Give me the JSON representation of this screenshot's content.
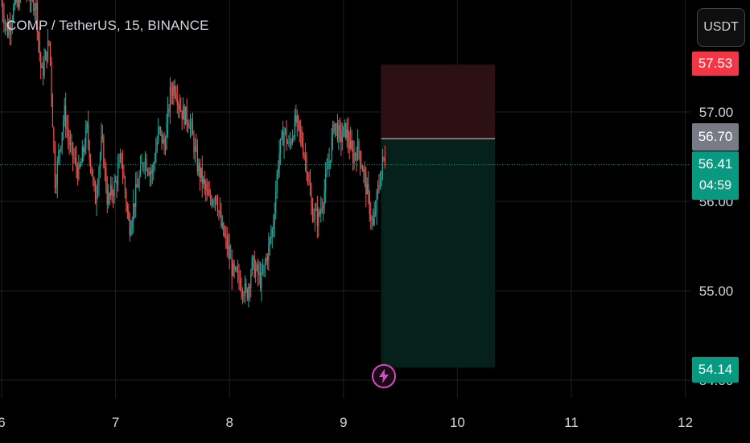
{
  "header": {
    "symbol_title": "COMP / TetherUS, 15, BINANCE",
    "currency_button": "USDT"
  },
  "price_tags": {
    "stop_loss": "57.53",
    "entry": "56.70",
    "last_price": "56.41",
    "countdown": "04:59",
    "take_profit": "54.14"
  },
  "colors": {
    "background": "#000000",
    "up": "#26a69a",
    "down": "#ef5350",
    "grid": "#1f1f1f",
    "stop_zone": "#2c1014",
    "profit_zone": "#06201c",
    "last_price_line": "#089981",
    "alert_icon": "#d64dbd"
  },
  "icons": {
    "alert": "lightning-alert-icon"
  },
  "chart_data": {
    "type": "candlestick",
    "title": "COMP / TetherUS, 15, BINANCE",
    "x_axis": {
      "ticks": [
        "6",
        "7",
        "8",
        "9",
        "10",
        "11",
        "12"
      ],
      "tick_values": [
        6,
        7,
        8,
        9,
        10,
        11,
        12
      ],
      "range": [
        6,
        12.05
      ]
    },
    "y_axis": {
      "ticks": [
        "54.00",
        "55.00",
        "56.00",
        "57.00"
      ],
      "tick_values": [
        54,
        55,
        56,
        57
      ],
      "range": [
        53.85,
        58.4
      ]
    },
    "grid": true,
    "last_price": 56.41,
    "position": {
      "side": "short",
      "entry": 56.7,
      "stop": 57.53,
      "target": 54.14,
      "x_start": 9.33,
      "x_end": 10.33
    },
    "price_path": [
      [
        6.0,
        58.2
      ],
      [
        6.05,
        57.9
      ],
      [
        6.12,
        58.2
      ],
      [
        6.2,
        58.4
      ],
      [
        6.3,
        58.2
      ],
      [
        6.35,
        57.4
      ],
      [
        6.42,
        57.8
      ],
      [
        6.47,
        56.2
      ],
      [
        6.55,
        57.0
      ],
      [
        6.6,
        56.6
      ],
      [
        6.68,
        56.3
      ],
      [
        6.75,
        56.8
      ],
      [
        6.82,
        56.0
      ],
      [
        6.88,
        56.7
      ],
      [
        6.93,
        56.0
      ],
      [
        7.0,
        56.2
      ],
      [
        7.05,
        56.5
      ],
      [
        7.12,
        55.7
      ],
      [
        7.18,
        56.1
      ],
      [
        7.25,
        56.5
      ],
      [
        7.32,
        56.3
      ],
      [
        7.38,
        56.8
      ],
      [
        7.43,
        56.6
      ],
      [
        7.48,
        57.2
      ],
      [
        7.52,
        57.3
      ],
      [
        7.58,
        57.0
      ],
      [
        7.65,
        56.9
      ],
      [
        7.72,
        56.4
      ],
      [
        7.77,
        56.2
      ],
      [
        7.82,
        56.0
      ],
      [
        7.88,
        56.1
      ],
      [
        7.93,
        55.7
      ],
      [
        7.98,
        55.5
      ],
      [
        8.03,
        55.2
      ],
      [
        8.1,
        55.1
      ],
      [
        8.15,
        54.95
      ],
      [
        8.2,
        55.3
      ],
      [
        8.28,
        55.1
      ],
      [
        8.33,
        55.4
      ],
      [
        8.38,
        55.7
      ],
      [
        8.43,
        56.5
      ],
      [
        8.48,
        56.8
      ],
      [
        8.52,
        56.6
      ],
      [
        8.58,
        56.9
      ],
      [
        8.63,
        56.7
      ],
      [
        8.68,
        56.4
      ],
      [
        8.72,
        55.9
      ],
      [
        8.78,
        55.8
      ],
      [
        8.83,
        56.1
      ],
      [
        8.88,
        56.5
      ],
      [
        8.92,
        56.9
      ],
      [
        8.97,
        56.7
      ],
      [
        9.02,
        56.8
      ],
      [
        9.08,
        56.5
      ],
      [
        9.13,
        56.6
      ],
      [
        9.18,
        56.3
      ],
      [
        9.22,
        56.0
      ],
      [
        9.26,
        55.7
      ],
      [
        9.3,
        56.1
      ],
      [
        9.34,
        56.4
      ],
      [
        9.36,
        56.5
      ],
      [
        9.37,
        56.41
      ]
    ]
  }
}
